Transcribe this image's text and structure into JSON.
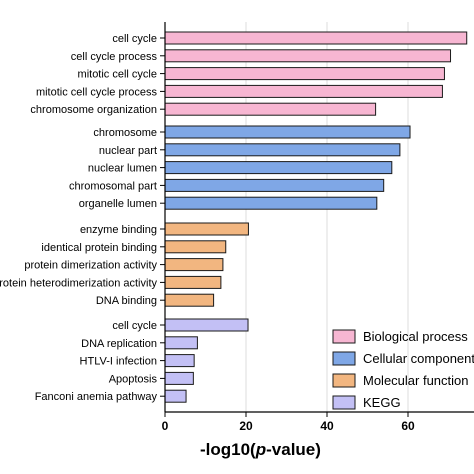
{
  "chart_data": {
    "type": "bar",
    "orientation": "horizontal",
    "xlabel_prefix": "-log10(",
    "xlabel_italic": "p",
    "xlabel_suffix": "-value)",
    "xlim": [
      0,
      75
    ],
    "xticks": [
      "0",
      "20",
      "40",
      "60"
    ],
    "grid": "vertical",
    "legend_position": "bottom-right",
    "groups": [
      {
        "name": "Biological process",
        "color": "#f7b6d2",
        "categories": [
          "cell cycle",
          "cell cycle process",
          "mitotic cell cycle",
          "mitotic cell cycle process",
          "chromosome organization"
        ],
        "values": [
          74.5,
          70.5,
          69,
          68.5,
          52
        ]
      },
      {
        "name": "Cellular component",
        "color": "#7fa7e6",
        "categories": [
          "chromosome",
          "nuclear part",
          "nuclear lumen",
          "chromosomal part",
          "organelle lumen"
        ],
        "values": [
          60.5,
          58,
          56,
          54,
          52.3
        ]
      },
      {
        "name": "Molecular function",
        "color": "#f2b680",
        "categories": [
          "enzyme binding",
          "identical protein binding",
          "protein dimerization activity",
          "protein heterodimerization activity",
          "DNA binding"
        ],
        "values": [
          20.6,
          15,
          14.3,
          13.8,
          12
        ]
      },
      {
        "name": "KEGG",
        "color": "#c3c0f5",
        "categories": [
          "cell cycle",
          "DNA replication",
          "HTLV-I infection",
          "Apoptosis",
          "Fanconi anemia pathway"
        ],
        "values": [
          20.5,
          8,
          7.2,
          7,
          5.2
        ]
      }
    ],
    "legend": [
      "Biological process",
      "Cellular component",
      "Molecular function",
      "KEGG"
    ]
  }
}
